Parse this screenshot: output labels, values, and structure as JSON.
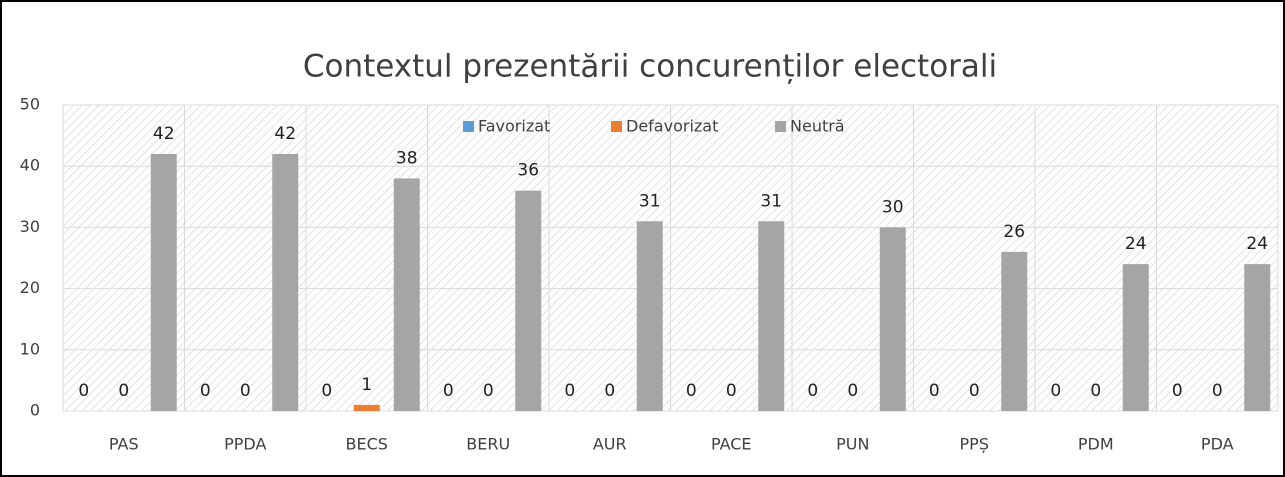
{
  "chart_data": {
    "type": "bar",
    "title": "Contextul prezentării concurenților electorali",
    "categories": [
      "PAS",
      "PPDA",
      "BECS",
      "BERU",
      "AUR",
      "PACE",
      "PUN",
      "PPȘ",
      "PDM",
      "PDA"
    ],
    "series": [
      {
        "name": "Favorizat",
        "color": "#5b9bd5",
        "values": [
          0,
          0,
          0,
          0,
          0,
          0,
          0,
          0,
          0,
          0
        ]
      },
      {
        "name": "Defavorizat",
        "color": "#ed7d31",
        "values": [
          0,
          0,
          1,
          0,
          0,
          0,
          0,
          0,
          0,
          0
        ]
      },
      {
        "name": "Neutră",
        "color": "#a5a5a5",
        "values": [
          42,
          42,
          38,
          36,
          31,
          31,
          30,
          26,
          24,
          24
        ]
      }
    ],
    "ylim": [
      0,
      50
    ],
    "yticks": [
      0,
      10,
      20,
      30,
      40,
      50
    ],
    "grid": true,
    "legend": "top"
  }
}
